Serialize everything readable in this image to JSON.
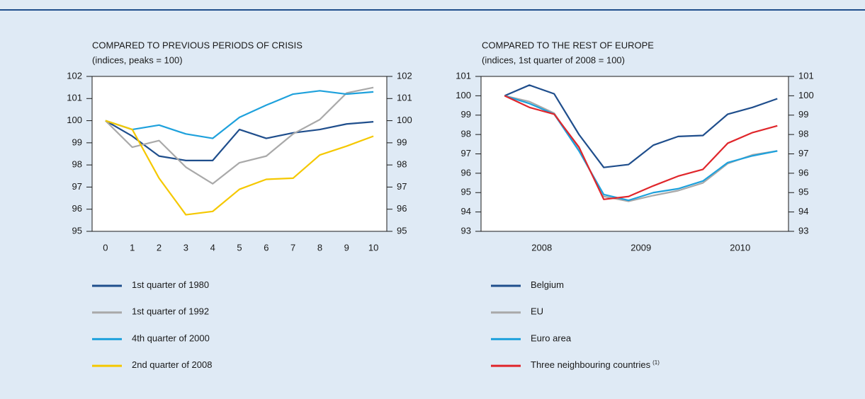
{
  "chart_data": [
    {
      "type": "line",
      "title": "COMPARED TO PREVIOUS PERIODS OF CRISIS",
      "subtitle": "(indices, peaks = 100)",
      "x": [
        0,
        1,
        2,
        3,
        4,
        5,
        6,
        7,
        8,
        9,
        10
      ],
      "xlim": [
        -0.5,
        10.5
      ],
      "xticks": [
        0,
        1,
        2,
        3,
        4,
        5,
        6,
        7,
        8,
        9,
        10
      ],
      "ylim": [
        95,
        102
      ],
      "yticks": [
        95,
        96,
        97,
        98,
        99,
        100,
        101,
        102
      ],
      "y2lim": [
        95,
        102
      ],
      "y2ticks": [
        95,
        96,
        97,
        98,
        99,
        100,
        101,
        102
      ],
      "series": [
        {
          "name": "1st quarter of 1980",
          "color": "#1f4e8c",
          "values": [
            100,
            99.3,
            98.4,
            98.2,
            98.2,
            99.6,
            99.2,
            99.45,
            99.6,
            99.85,
            99.95
          ]
        },
        {
          "name": "1st quarter of 1992",
          "color": "#a9a9a9",
          "values": [
            100,
            98.8,
            99.1,
            97.9,
            97.15,
            98.1,
            98.4,
            99.4,
            100.05,
            101.25,
            101.5
          ]
        },
        {
          "name": "4th quarter of 2000",
          "color": "#1ea1dc",
          "values": [
            100,
            99.6,
            99.8,
            99.4,
            99.2,
            100.15,
            100.7,
            101.2,
            101.35,
            101.2,
            101.3
          ]
        },
        {
          "name": "2nd quarter of 2008",
          "color": "#f5c800",
          "values": [
            100,
            99.6,
            97.4,
            95.75,
            95.9,
            96.9,
            97.35,
            97.4,
            98.45,
            98.85,
            99.3
          ]
        }
      ]
    },
    {
      "type": "line",
      "title": "COMPARED TO THE REST OF EUROPE",
      "subtitle": "(indices, 1st quarter of 2008 = 100)",
      "categories": [
        null,
        "2008",
        null,
        null,
        null,
        "2009",
        null,
        null,
        null,
        "2010",
        null,
        null
      ],
      "ylim": [
        93,
        101
      ],
      "yticks": [
        93,
        94,
        95,
        96,
        97,
        98,
        99,
        100,
        101
      ],
      "y2lim": [
        93,
        101
      ],
      "y2ticks": [
        93,
        94,
        95,
        96,
        97,
        98,
        99,
        100,
        101
      ],
      "series": [
        {
          "name": "Belgium",
          "color": "#1f4e8c",
          "values": [
            100,
            100.55,
            100.1,
            98,
            96.3,
            96.45,
            97.45,
            97.9,
            97.95,
            99.05,
            99.4,
            99.85
          ]
        },
        {
          "name": "EU",
          "color": "#a9a9a9",
          "values": [
            100,
            99.7,
            99.1,
            97.2,
            94.8,
            94.55,
            94.85,
            95.1,
            95.5,
            96.5,
            96.95,
            97.15
          ]
        },
        {
          "name": "Euro area",
          "color": "#1ea1dc",
          "values": [
            100,
            99.6,
            99.05,
            97.15,
            94.9,
            94.6,
            95.0,
            95.2,
            95.6,
            96.55,
            96.9,
            97.15
          ]
        },
        {
          "name": "Three neighbouring countries",
          "note": "(1)",
          "color": "#e0262b",
          "values": [
            100,
            99.4,
            99.05,
            97.35,
            94.65,
            94.8,
            95.35,
            95.85,
            96.2,
            97.55,
            98.1,
            98.45
          ]
        }
      ]
    }
  ]
}
